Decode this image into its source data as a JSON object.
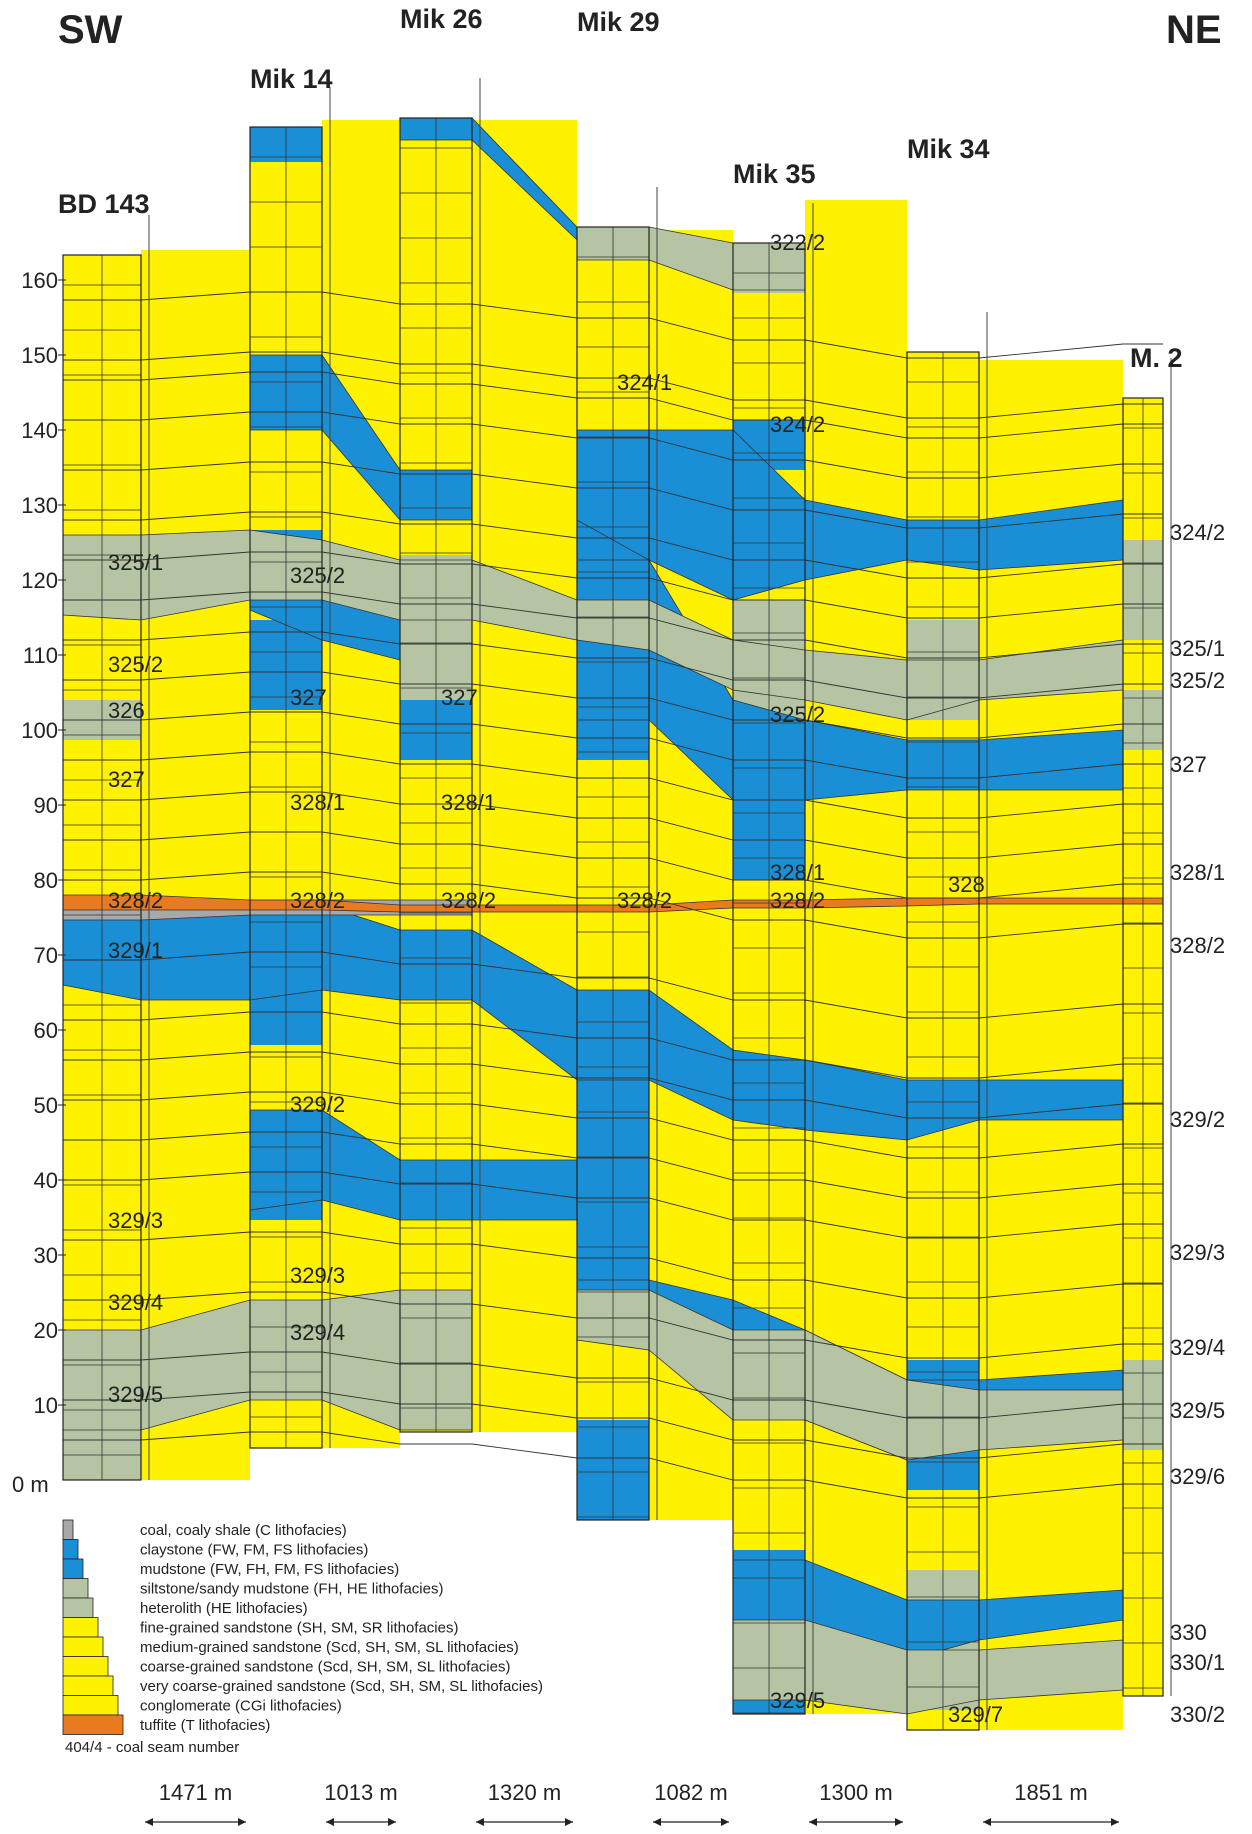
{
  "directions": {
    "left": "SW",
    "right": "NE"
  },
  "wells": [
    {
      "id": "bd143",
      "name": "BD 143"
    },
    {
      "id": "mik14",
      "name": "Mik 14"
    },
    {
      "id": "mik26",
      "name": "Mik 26"
    },
    {
      "id": "mik29",
      "name": "Mik 29"
    },
    {
      "id": "mik35",
      "name": "Mik 35"
    },
    {
      "id": "mik34",
      "name": "Mik 34"
    },
    {
      "id": "m2",
      "name": "M. 2"
    }
  ],
  "axis": {
    "unit_label": "0 m",
    "ticks": [
      "10",
      "20",
      "30",
      "40",
      "50",
      "60",
      "70",
      "80",
      "90",
      "100",
      "110",
      "120",
      "130",
      "140",
      "150",
      "160"
    ]
  },
  "seams": [
    {
      "well": "bd143",
      "labels": [
        "325/1",
        "325/2",
        "326",
        "327",
        "328/2",
        "329/1",
        "329/3",
        "329/4",
        "329/5"
      ]
    },
    {
      "well": "mik14",
      "labels": [
        "325/2",
        "327",
        "328/1",
        "328/2",
        "329/2",
        "329/3",
        "329/4"
      ]
    },
    {
      "well": "mik26",
      "labels": [
        "327",
        "328/1",
        "328/2"
      ]
    },
    {
      "well": "mik29",
      "labels": [
        "324/1",
        "328/2"
      ]
    },
    {
      "well": "mik35",
      "labels": [
        "322/2",
        "324/2",
        "325/2",
        "328/1",
        "328/2",
        "329/5"
      ]
    },
    {
      "well": "mik34",
      "labels": [
        "328",
        "329/7"
      ]
    },
    {
      "well": "m2",
      "labels": [
        "324/2",
        "325/1",
        "325/2",
        "327",
        "328/1",
        "328/2",
        "329/2",
        "329/3",
        "329/4",
        "329/5",
        "329/6",
        "330",
        "330/1",
        "330/2"
      ]
    }
  ],
  "legend": [
    {
      "label": "coal, coaly shale (C lithofacies)",
      "color": "#a8a8a8"
    },
    {
      "label": "claystone (FW, FM, FS lithofacies)",
      "color": "#1b8fd6"
    },
    {
      "label": "mudstone (FW, FH, FM, FS lithofacies)",
      "color": "#1b8fd6"
    },
    {
      "label": "siltstone/sandy mudstone (FH, HE lithofacies)",
      "color": "#b5c4a2"
    },
    {
      "label": "heterolith (HE lithofacies)",
      "color": "#b5c4a2"
    },
    {
      "label": "fine-grained sandstone (SH, SM, SR lithofacies)",
      "color": "#fff200"
    },
    {
      "label": "medium-grained sandstone (Scd, SH, SM, SL lithofacies)",
      "color": "#fff200"
    },
    {
      "label": "coarse-grained sandstone (Scd, SH, SM, SL lithofacies)",
      "color": "#fff200"
    },
    {
      "label": "very coarse-grained sandstone (Scd, SH, SM, SL lithofacies)",
      "color": "#fff200"
    },
    {
      "label": "conglomerate (CGi lithofacies)",
      "color": "#fff200"
    },
    {
      "label": "tuffite (T lithofacies)",
      "color": "#ea7a1f"
    }
  ],
  "seam_note": "404/4 - coal seam number",
  "distances": [
    "1471 m",
    "1013 m",
    "1320 m",
    "1082 m",
    "1300 m",
    "1851 m"
  ],
  "colors": {
    "sand": "#fff200",
    "clay": "#1b8fd6",
    "silt": "#b5c4a2",
    "coal": "#a8a8a8",
    "tuffite": "#ea7a1f"
  }
}
